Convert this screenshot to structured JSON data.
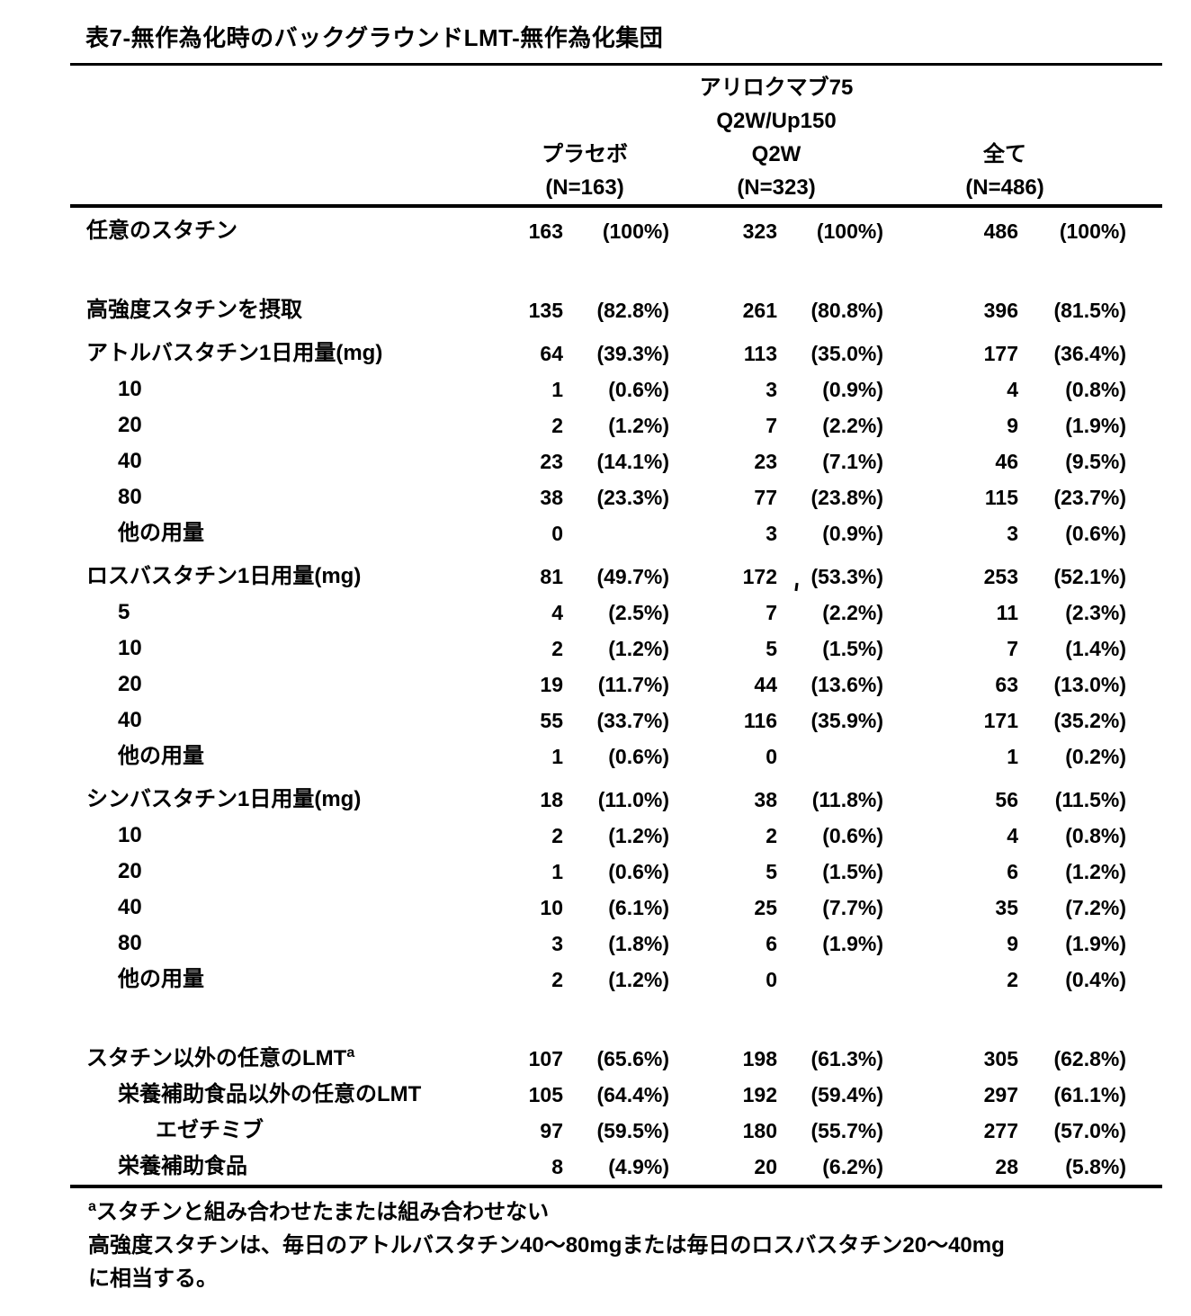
{
  "page": {
    "title": "表7-無作為化時のバックグラウンドLMT-無作為化集団"
  },
  "table": {
    "column_groups": [
      {
        "line1": "",
        "line2": "",
        "name": "プラセボ",
        "n": "(N=163)"
      },
      {
        "line1": "アリロクマブ75",
        "line2": "Q2W/Up150",
        "name": "Q2W",
        "n": "(N=323)"
      },
      {
        "line1": "",
        "line2": "",
        "name": "全て",
        "n": "(N=486)"
      }
    ],
    "rows": [
      {
        "label": "任意のスタチン",
        "indent": 0,
        "n": [
          "163",
          "323",
          "486"
        ],
        "p": [
          "(100%)",
          "(100%)",
          "(100%)"
        ]
      },
      {
        "spacer": true
      },
      {
        "label": "高強度スタチンを摂取",
        "indent": 0,
        "n": [
          "135",
          "261",
          "396"
        ],
        "p": [
          "(82.8%)",
          "(80.8%)",
          "(81.5%)"
        ]
      },
      {
        "label": "アトルバスタチン1日用量(mg)",
        "indent": 0,
        "section": true,
        "n": [
          "64",
          "113",
          "177"
        ],
        "p": [
          "(39.3%)",
          "(35.0%)",
          "(36.4%)"
        ]
      },
      {
        "label": "10",
        "indent": 1,
        "n": [
          "1",
          "3",
          "4"
        ],
        "p": [
          "(0.6%)",
          "(0.9%)",
          "(0.8%)"
        ]
      },
      {
        "label": "20",
        "indent": 1,
        "n": [
          "2",
          "7",
          "9"
        ],
        "p": [
          "(1.2%)",
          "(2.2%)",
          "(1.9%)"
        ]
      },
      {
        "label": "40",
        "indent": 1,
        "n": [
          "23",
          "23",
          "46"
        ],
        "p": [
          "(14.1%)",
          "(7.1%)",
          "(9.5%)"
        ]
      },
      {
        "label": "80",
        "indent": 1,
        "n": [
          "38",
          "77",
          "115"
        ],
        "p": [
          "(23.3%)",
          "(23.8%)",
          "(23.7%)"
        ]
      },
      {
        "label": "他の用量",
        "indent": 1,
        "n": [
          "0",
          "3",
          "3"
        ],
        "p": [
          "",
          "(0.9%)",
          "(0.6%)"
        ]
      },
      {
        "label": "ロスバスタチン1日用量(mg)",
        "indent": 0,
        "section": true,
        "n": [
          "81",
          "172",
          "253"
        ],
        "p": [
          "(49.7%)",
          "(53.3%)",
          "(52.1%)"
        ]
      },
      {
        "label": "5",
        "indent": 1,
        "n": [
          "4",
          "7",
          "11"
        ],
        "p": [
          "(2.5%)",
          "(2.2%)",
          "(2.3%)"
        ]
      },
      {
        "label": "10",
        "indent": 1,
        "n": [
          "2",
          "5",
          "7"
        ],
        "p": [
          "(1.2%)",
          "(1.5%)",
          "(1.4%)"
        ]
      },
      {
        "label": "20",
        "indent": 1,
        "n": [
          "19",
          "44",
          "63"
        ],
        "p": [
          "(11.7%)",
          "(13.6%)",
          "(13.0%)"
        ]
      },
      {
        "label": "40",
        "indent": 1,
        "n": [
          "55",
          "116",
          "171"
        ],
        "p": [
          "(33.7%)",
          "(35.9%)",
          "(35.2%)"
        ]
      },
      {
        "label": "他の用量",
        "indent": 1,
        "n": [
          "1",
          "0",
          "1"
        ],
        "p": [
          "(0.6%)",
          "",
          "(0.2%)"
        ]
      },
      {
        "label": "シンバスタチン1日用量(mg)",
        "indent": 0,
        "section": true,
        "n": [
          "18",
          "38",
          "56"
        ],
        "p": [
          "(11.0%)",
          "(11.8%)",
          "(11.5%)"
        ]
      },
      {
        "label": "10",
        "indent": 1,
        "n": [
          "2",
          "2",
          "4"
        ],
        "p": [
          "(1.2%)",
          "(0.6%)",
          "(0.8%)"
        ]
      },
      {
        "label": "20",
        "indent": 1,
        "n": [
          "1",
          "5",
          "6"
        ],
        "p": [
          "(0.6%)",
          "(1.5%)",
          "(1.2%)"
        ]
      },
      {
        "label": "40",
        "indent": 1,
        "n": [
          "10",
          "25",
          "35"
        ],
        "p": [
          "(6.1%)",
          "(7.7%)",
          "(7.2%)"
        ]
      },
      {
        "label": "80",
        "indent": 1,
        "n": [
          "3",
          "6",
          "9"
        ],
        "p": [
          "(1.8%)",
          "(1.9%)",
          "(1.9%)"
        ]
      },
      {
        "label": "他の用量",
        "indent": 1,
        "n": [
          "2",
          "0",
          "2"
        ],
        "p": [
          "(1.2%)",
          "",
          "(0.4%)"
        ]
      },
      {
        "spacer": true
      },
      {
        "label": "スタチン以外の任意のLMT",
        "sup": "a",
        "indent": 0,
        "n": [
          "107",
          "198",
          "305"
        ],
        "p": [
          "(65.6%)",
          "(61.3%)",
          "(62.8%)"
        ]
      },
      {
        "label": "栄養補助食品以外の任意のLMT",
        "indent": 1,
        "n": [
          "105",
          "192",
          "297"
        ],
        "p": [
          "(64.4%)",
          "(59.4%)",
          "(61.1%)"
        ]
      },
      {
        "label": "エゼチミブ",
        "indent": 2,
        "n": [
          "97",
          "180",
          "277"
        ],
        "p": [
          "(59.5%)",
          "(55.7%)",
          "(57.0%)"
        ]
      },
      {
        "label": "栄養補助食品",
        "indent": 1,
        "n": [
          "8",
          "20",
          "28"
        ],
        "p": [
          "(4.9%)",
          "(6.2%)",
          "(5.8%)"
        ]
      }
    ]
  },
  "footnotes": {
    "sup": "a",
    "line1": "スタチンと組み合わせたまたは組み合わせない",
    "line2": "高強度スタチンは、毎日のアトルバスタチン40～80mgまたは毎日のロスバスタチン20～40mg",
    "line3": "に相当する。"
  }
}
